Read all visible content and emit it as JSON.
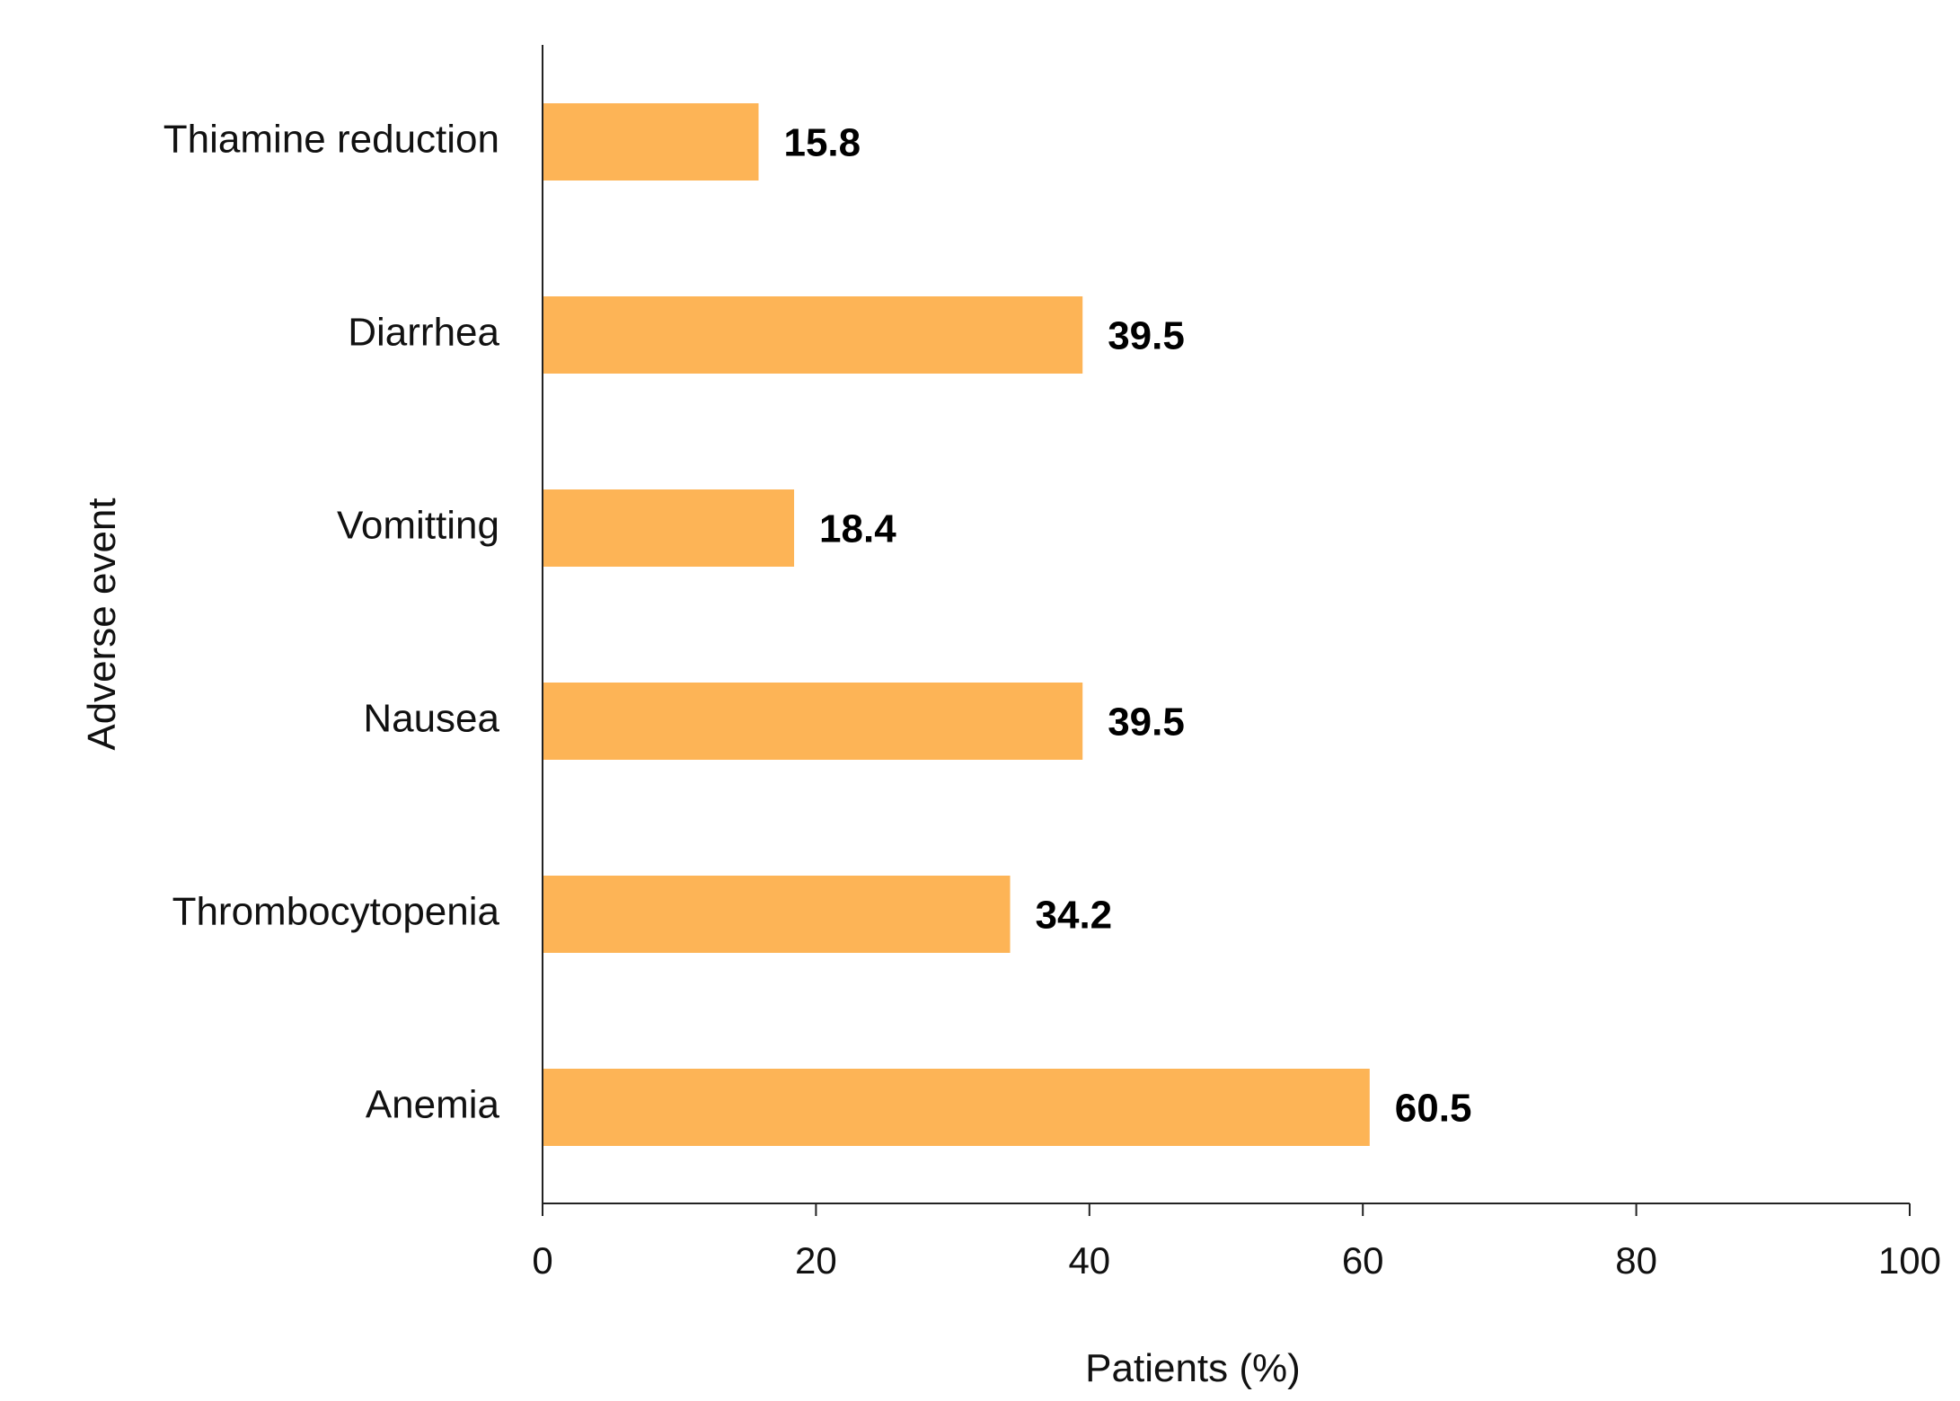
{
  "chart_data": {
    "type": "bar",
    "orientation": "horizontal",
    "categories": [
      "Thiamine reduction",
      "Diarrhea",
      "Vomitting",
      "Nausea",
      "Thrombocytopenia",
      "Anemia"
    ],
    "values": [
      15.8,
      39.5,
      18.4,
      39.5,
      34.2,
      60.5
    ],
    "data_labels": [
      "15.8",
      "39.5",
      "18.4",
      "39.5",
      "34.2",
      "60.5"
    ],
    "xlabel": "Patients (%)",
    "ylabel": "Adverse event",
    "xlim": [
      0,
      100
    ],
    "x_ticks": [
      0,
      20,
      40,
      60,
      80,
      100
    ],
    "grid": false,
    "legend": "none",
    "bar_color": "#FDB456"
  }
}
